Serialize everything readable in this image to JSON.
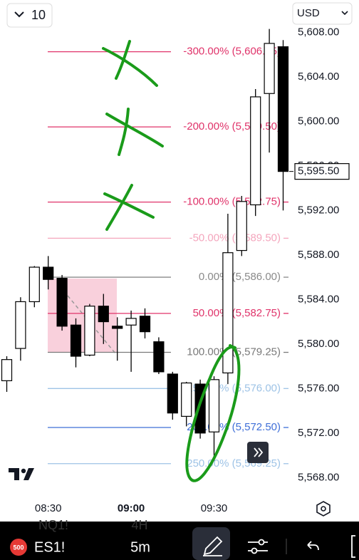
{
  "toolbar": {
    "interval": "10",
    "currency": "USD"
  },
  "chart_data": {
    "type": "candlestick",
    "categories": [
      null,
      null,
      null,
      "08:30",
      null,
      null,
      null,
      null,
      null,
      "09:00",
      null,
      null,
      null,
      null,
      null,
      "09:30",
      null,
      null,
      null,
      null,
      null
    ],
    "open": [
      5576.7,
      5579.6,
      5583.8,
      5586.9,
      5585.9,
      5581.7,
      5579.0,
      5583.4,
      5581.6,
      5581.7,
      5582.5,
      5580.2,
      5577.3,
      5573.5,
      5576.4,
      5572.1,
      5577.4,
      5588.4,
      5592.5,
      5602.5,
      5606.7
    ],
    "high": [
      5578.9,
      5584.2,
      5587.0,
      5587.9,
      5586.2,
      5582.3,
      5583.6,
      5584.5,
      5582.4,
      5583.0,
      5583.2,
      5580.6,
      5577.5,
      5576.6,
      5576.8,
      5577.1,
      5591.7,
      5593.3,
      5602.9,
      5608.3,
      5607.3
    ],
    "low": [
      5575.7,
      5578.5,
      5583.3,
      5584.9,
      5581.2,
      5577.9,
      5578.9,
      5580.0,
      5578.5,
      5577.5,
      5580.5,
      5577.3,
      5573.2,
      5572.6,
      5571.5,
      5569.5,
      5576.4,
      5587.9,
      5591.5,
      5597.2,
      5592.0
    ],
    "close": [
      5578.6,
      5583.8,
      5586.9,
      5585.8,
      5581.6,
      5578.9,
      5583.4,
      5582.0,
      5581.4,
      5582.3,
      5581.1,
      5577.5,
      5573.8,
      5576.5,
      5572.0,
      5576.8,
      5588.2,
      5592.8,
      5602.2,
      5607.0,
      5595.5
    ],
    "up_color": "#ffffff",
    "down_color": "#000000",
    "ylim": [
      5566.1,
      5610.9
    ],
    "yticks": [
      {
        "value": 5568,
        "label": "5,568.00"
      },
      {
        "value": 5572,
        "label": "5,572.00"
      },
      {
        "value": 5576,
        "label": "5,576.00"
      },
      {
        "value": 5580,
        "label": "5,580.00"
      },
      {
        "value": 5584,
        "label": "5,584.00"
      },
      {
        "value": 5588,
        "label": "5,588.00"
      },
      {
        "value": 5592,
        "label": "5,592.00"
      },
      {
        "value": 5596,
        "label": "5,596.00"
      },
      {
        "value": 5600,
        "label": "5,600.00"
      },
      {
        "value": 5604,
        "label": "5,604.00"
      },
      {
        "value": 5608,
        "label": "5,608.00"
      }
    ],
    "last_price": {
      "value": 5595.5,
      "label": "5,595.50"
    },
    "fib_levels": [
      {
        "value": 5606.25,
        "label": "-300.00% (5,606.25)",
        "color": "#e0336a"
      },
      {
        "value": 5599.5,
        "label": "-200.00% (5,599.50)",
        "color": "#e0336a"
      },
      {
        "value": 5592.75,
        "label": "-100.00% (5,592.75)",
        "color": "#e0336a"
      },
      {
        "value": 5589.5,
        "label": "-50.00% (5,589.50)",
        "color": "#f4a6bd"
      },
      {
        "value": 5586,
        "label": "0.00% (5,586.00)",
        "color": "#8a8a8a"
      },
      {
        "value": 5582.75,
        "label": "50.00% (5,582.75)",
        "color": "#e0336a"
      },
      {
        "value": 5579.25,
        "label": "100.00% (5,579.25)",
        "color": "#7a7a7a"
      },
      {
        "value": 5576,
        "label": "150.00% (5,576.00)",
        "color": "#9ec3e6"
      },
      {
        "value": 5572.5,
        "label": "200.00% (5,572.50)",
        "color": "#3f6fd8"
      },
      {
        "value": 5569.25,
        "label": "250.00% (5,569.25)",
        "color": "#9ec3e6"
      }
    ]
  },
  "bottom_bar": {
    "badge": "500",
    "symbol": "ES1!",
    "interval": "5m",
    "ghost_symbol": "NQ1!",
    "ghost_interval": "4H"
  }
}
